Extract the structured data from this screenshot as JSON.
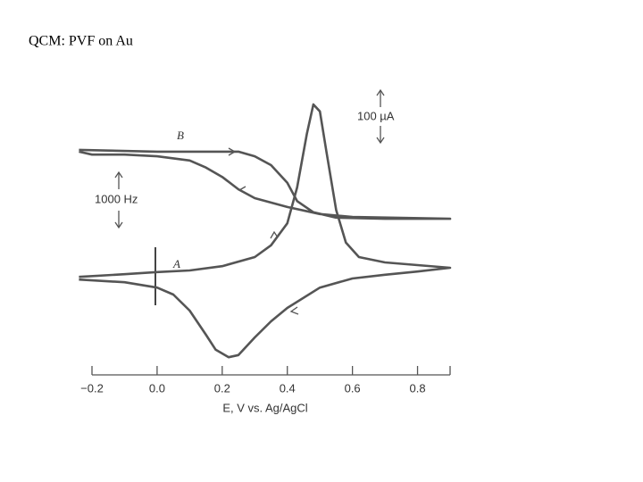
{
  "slide_title": "QCM: PVF on Au",
  "chart_data": {
    "type": "line",
    "xlabel": "E, V vs. Ag/AgCl",
    "xlim": [
      -0.2,
      0.9
    ],
    "xticks": [
      {
        "value": -0.2,
        "label": "−0.2"
      },
      {
        "value": 0,
        "label": "0.0"
      },
      0.2,
      0.4,
      0.6,
      0.8
    ],
    "ylim": [
      -200,
      350
    ],
    "y2lim": [
      -2500,
      2500
    ],
    "annotations": [
      "100 µA",
      "1000 Hz"
    ],
    "series": [
      {
        "name": "A",
        "color": "#555555",
        "x": [
          -0.24,
          -0.1,
          0.0,
          0.1,
          0.2,
          0.3,
          0.35,
          0.4,
          0.43,
          0.46,
          0.48,
          0.5,
          0.52,
          0.55,
          0.58,
          0.62,
          0.7,
          0.8,
          0.9,
          0.8,
          0.7,
          0.6,
          0.5,
          0.4,
          0.35,
          0.3,
          0.25,
          0.22,
          0.18,
          0.15,
          0.1,
          0.05,
          0.0,
          -0.1,
          -0.24
        ],
        "values": [
          -17,
          -12,
          -8,
          -5,
          3,
          20,
          42,
          83,
          150,
          250,
          305,
          292,
          217,
          108,
          47,
          20,
          10,
          5,
          0,
          -7,
          -13,
          -20,
          -37,
          -75,
          -100,
          -130,
          -163,
          -167,
          -153,
          -125,
          -80,
          -50,
          -37,
          -27,
          -22
        ]
      },
      {
        "name": "B",
        "color": "#555555",
        "axis": "y2",
        "x": [
          -0.24,
          0.0,
          0.25,
          0.3,
          0.35,
          0.4,
          0.43,
          0.48,
          0.55,
          0.7,
          0.9,
          0.6,
          0.5,
          0.4,
          0.3,
          0.25,
          0.2,
          0.15,
          0.1,
          0.0,
          -0.1,
          -0.2,
          -0.24
        ],
        "values": [
          1320,
          1290,
          1290,
          1210,
          1060,
          760,
          450,
          260,
          170,
          150,
          150,
          180,
          230,
          350,
          500,
          650,
          860,
          1020,
          1140,
          1210,
          1240,
          1240,
          1290
        ]
      }
    ]
  }
}
